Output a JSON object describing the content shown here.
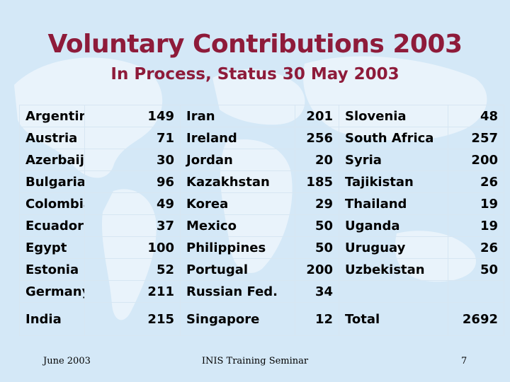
{
  "slide": {
    "title": "Voluntary Contributions 2003",
    "subtitle": "In Process, Status 30 May 2003"
  },
  "table": {
    "rows": [
      [
        {
          "c": "Argentina",
          "v": "149"
        },
        {
          "c": "Iran",
          "v": "201"
        },
        {
          "c": "Slovenia",
          "v": "48"
        }
      ],
      [
        {
          "c": "Austria",
          "v": "71"
        },
        {
          "c": "Ireland",
          "v": "256"
        },
        {
          "c": "South Africa",
          "v": "257"
        }
      ],
      [
        {
          "c": "Azerbaijan",
          "v": "30"
        },
        {
          "c": "Jordan",
          "v": "20"
        },
        {
          "c": "Syria",
          "v": "200"
        }
      ],
      [
        {
          "c": "Bulgaria",
          "v": "96"
        },
        {
          "c": "Kazakhstan",
          "v": "185"
        },
        {
          "c": "Tajikistan",
          "v": "26"
        }
      ],
      [
        {
          "c": "Colombia",
          "v": "49"
        },
        {
          "c": "Korea",
          "v": "29"
        },
        {
          "c": "Thailand",
          "v": "19"
        }
      ],
      [
        {
          "c": "Ecuador",
          "v": "37"
        },
        {
          "c": "Mexico",
          "v": "50"
        },
        {
          "c": "Uganda",
          "v": "19"
        }
      ],
      [
        {
          "c": "Egypt",
          "v": "100"
        },
        {
          "c": "Philippines",
          "v": "50"
        },
        {
          "c": "Uruguay",
          "v": "26"
        }
      ],
      [
        {
          "c": "Estonia",
          "v": "52"
        },
        {
          "c": "Portugal",
          "v": "200"
        },
        {
          "c": "Uzbekistan",
          "v": "50"
        }
      ],
      [
        {
          "c": "Germany",
          "v": "211"
        },
        {
          "c": "Russian Fed.",
          "v": "34"
        },
        {
          "c": "",
          "v": ""
        }
      ],
      [
        {
          "c": "India",
          "v": "215"
        },
        {
          "c": "Singapore",
          "v": "12"
        },
        {
          "c": "Total",
          "v": "2692"
        }
      ]
    ]
  },
  "footer": {
    "date": "June 2003",
    "center": "INIS Training Seminar",
    "page": "7"
  },
  "colors": {
    "title": "#8e1b3a",
    "background": "#d4e8f7"
  }
}
